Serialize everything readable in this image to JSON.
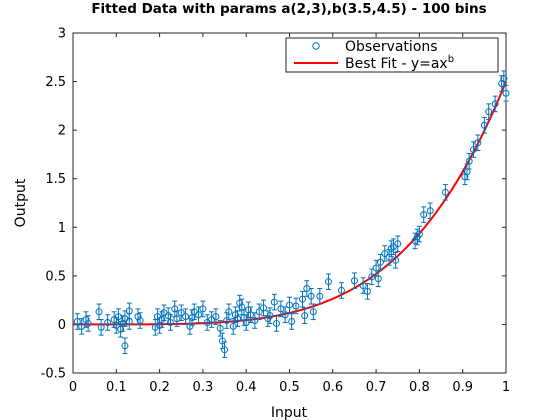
{
  "chart_data": {
    "type": "scatter",
    "title": "Fitted Data with params a(2,3),b(3.5,4.5) - 100 bins",
    "xlabel": "Input",
    "ylabel": "Output",
    "xlim": [
      0,
      1
    ],
    "ylim": [
      -0.5,
      3
    ],
    "xticks": [
      0,
      0.1,
      0.2,
      0.3,
      0.4,
      0.5,
      0.6,
      0.7,
      0.8,
      0.9,
      1
    ],
    "xtick_labels": [
      "0",
      "0.1",
      "0.2",
      "0.3",
      "0.4",
      "0.5",
      "0.6",
      "0.7",
      "0.8",
      "0.9",
      "1"
    ],
    "yticks": [
      -0.5,
      0,
      0.5,
      1,
      1.5,
      2,
      2.5,
      3
    ],
    "ytick_labels": [
      "-0.5",
      "0",
      "0.5",
      "1",
      "1.5",
      "2",
      "2.5",
      "3"
    ],
    "grid": false,
    "legend_position": "top-right",
    "colors": {
      "observations": "#0072bd",
      "fit": "#ff0000"
    },
    "series": [
      {
        "name": "Observations",
        "kind": "scatter-errorbar",
        "error": 0.08,
        "points": [
          [
            0.01,
            0.03
          ],
          [
            0.02,
            -0.02
          ],
          [
            0.03,
            0.05
          ],
          [
            0.035,
            0.01
          ],
          [
            0.06,
            0.13
          ],
          [
            0.065,
            -0.03
          ],
          [
            0.08,
            0.02
          ],
          [
            0.095,
            0.05
          ],
          [
            0.1,
            -0.01
          ],
          [
            0.105,
            0.08
          ],
          [
            0.11,
            -0.05
          ],
          [
            0.115,
            0.01
          ],
          [
            0.12,
            0.06
          ],
          [
            0.12,
            -0.22
          ],
          [
            0.13,
            0.14
          ],
          [
            0.13,
            0.03
          ],
          [
            0.15,
            0.08
          ],
          [
            0.155,
            0.04
          ],
          [
            0.19,
            -0.03
          ],
          [
            0.195,
            0.08
          ],
          [
            0.2,
            -0.01
          ],
          [
            0.205,
            0.05
          ],
          [
            0.21,
            0.12
          ],
          [
            0.22,
            0.09
          ],
          [
            0.225,
            0.02
          ],
          [
            0.235,
            0.16
          ],
          [
            0.24,
            0.06
          ],
          [
            0.25,
            0.12
          ],
          [
            0.26,
            0.08
          ],
          [
            0.27,
            -0.02
          ],
          [
            0.275,
            0.07
          ],
          [
            0.28,
            0.13
          ],
          [
            0.29,
            0.1
          ],
          [
            0.3,
            0.16
          ],
          [
            0.31,
            0.02
          ],
          [
            0.32,
            0.05
          ],
          [
            0.33,
            0.08
          ],
          [
            0.34,
            -0.04
          ],
          [
            0.345,
            -0.17
          ],
          [
            0.35,
            -0.26
          ],
          [
            0.355,
            0.04
          ],
          [
            0.36,
            0.13
          ],
          [
            0.37,
            -0.02
          ],
          [
            0.375,
            0.1
          ],
          [
            0.38,
            0.06
          ],
          [
            0.385,
            0.22
          ],
          [
            0.39,
            0.18
          ],
          [
            0.395,
            0.07
          ],
          [
            0.4,
            0.02
          ],
          [
            0.405,
            0.15
          ],
          [
            0.41,
            0.1
          ],
          [
            0.42,
            0.04
          ],
          [
            0.43,
            0.13
          ],
          [
            0.44,
            0.17
          ],
          [
            0.45,
            0.06
          ],
          [
            0.455,
            0.09
          ],
          [
            0.465,
            0.23
          ],
          [
            0.47,
            0.01
          ],
          [
            0.48,
            0.16
          ],
          [
            0.49,
            0.1
          ],
          [
            0.5,
            0.2
          ],
          [
            0.505,
            0.03
          ],
          [
            0.515,
            0.19
          ],
          [
            0.53,
            0.26
          ],
          [
            0.535,
            0.09
          ],
          [
            0.54,
            0.37
          ],
          [
            0.55,
            0.29
          ],
          [
            0.555,
            0.13
          ],
          [
            0.57,
            0.29
          ],
          [
            0.59,
            0.44
          ],
          [
            0.62,
            0.35
          ],
          [
            0.65,
            0.45
          ],
          [
            0.67,
            0.4
          ],
          [
            0.68,
            0.34
          ],
          [
            0.69,
            0.49
          ],
          [
            0.7,
            0.58
          ],
          [
            0.705,
            0.47
          ],
          [
            0.71,
            0.64
          ],
          [
            0.72,
            0.73
          ],
          [
            0.73,
            0.69
          ],
          [
            0.735,
            0.78
          ],
          [
            0.74,
            0.8
          ],
          [
            0.745,
            0.66
          ],
          [
            0.75,
            0.83
          ],
          [
            0.79,
            0.86
          ],
          [
            0.795,
            0.9
          ],
          [
            0.8,
            0.93
          ],
          [
            0.81,
            1.13
          ],
          [
            0.825,
            1.17
          ],
          [
            0.86,
            1.36
          ],
          [
            0.905,
            1.52
          ],
          [
            0.91,
            1.57
          ],
          [
            0.915,
            1.68
          ],
          [
            0.925,
            1.8
          ],
          [
            0.935,
            1.87
          ],
          [
            0.95,
            2.05
          ],
          [
            0.96,
            2.19
          ],
          [
            0.975,
            2.27
          ],
          [
            0.99,
            2.48
          ],
          [
            0.995,
            2.53
          ],
          [
            1.0,
            2.38
          ]
        ]
      },
      {
        "name": "Best Fit - y=ax",
        "name_superscript": "b",
        "kind": "line",
        "a": 2.5,
        "b": 4.4
      }
    ]
  }
}
